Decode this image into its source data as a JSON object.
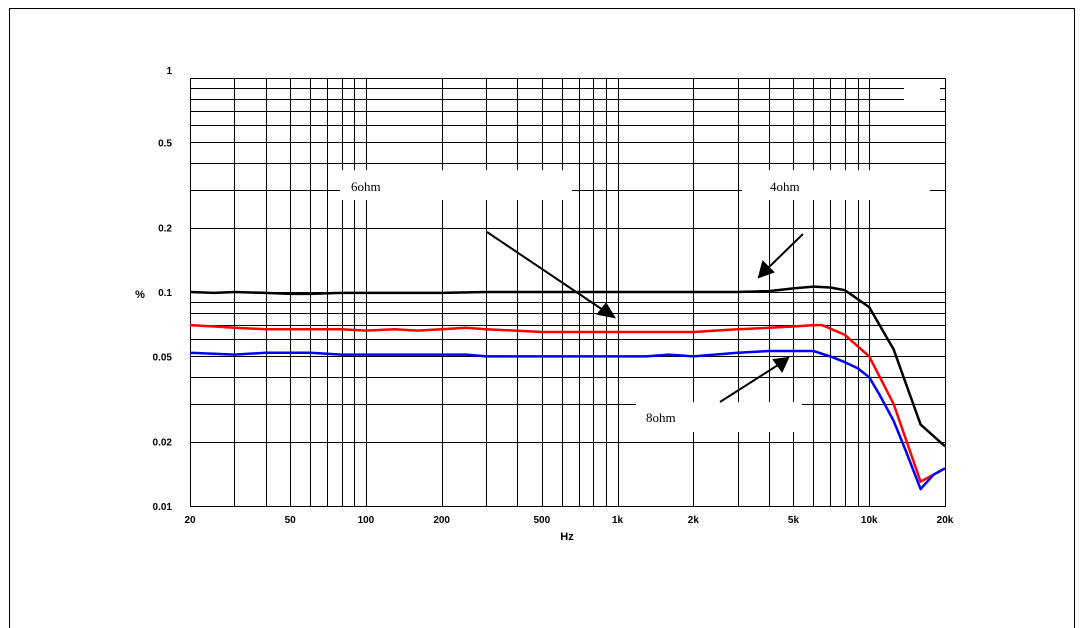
{
  "chart_data": {
    "type": "line",
    "xlabel": "Hz",
    "ylabel": "%",
    "xscale": "log",
    "yscale": "log",
    "xlim": [
      20,
      20000
    ],
    "ylim": [
      0.01,
      1
    ],
    "grid": true,
    "x_tick_labels": [
      {
        "value": 20,
        "label": "20"
      },
      {
        "value": 50,
        "label": "50"
      },
      {
        "value": 100,
        "label": "100"
      },
      {
        "value": 200,
        "label": "200"
      },
      {
        "value": 500,
        "label": "500"
      },
      {
        "value": 1000,
        "label": "1k"
      },
      {
        "value": 2000,
        "label": "2k"
      },
      {
        "value": 5000,
        "label": "5k"
      },
      {
        "value": 10000,
        "label": "10k"
      },
      {
        "value": 20000,
        "label": "20k"
      }
    ],
    "y_tick_labels": [
      {
        "value": 1,
        "label": "1"
      },
      {
        "value": 0.5,
        "label": "0.5"
      },
      {
        "value": 0.2,
        "label": "0.2"
      },
      {
        "value": 0.1,
        "label": "0.1"
      },
      {
        "value": 0.05,
        "label": "0.05"
      },
      {
        "value": 0.02,
        "label": "0.02"
      },
      {
        "value": 0.01,
        "label": "0.01"
      }
    ],
    "series": [
      {
        "name": "4ohm",
        "color": "#000000",
        "points": [
          [
            20,
            0.1
          ],
          [
            25,
            0.099
          ],
          [
            30,
            0.1
          ],
          [
            40,
            0.099
          ],
          [
            50,
            0.098
          ],
          [
            60,
            0.098
          ],
          [
            80,
            0.099
          ],
          [
            100,
            0.099
          ],
          [
            150,
            0.099
          ],
          [
            200,
            0.099
          ],
          [
            300,
            0.1
          ],
          [
            500,
            0.1
          ],
          [
            1000,
            0.1
          ],
          [
            2000,
            0.1
          ],
          [
            3000,
            0.1
          ],
          [
            4000,
            0.101
          ],
          [
            5000,
            0.104
          ],
          [
            6000,
            0.106
          ],
          [
            7000,
            0.105
          ],
          [
            8000,
            0.102
          ],
          [
            10000,
            0.085
          ],
          [
            12500,
            0.054
          ],
          [
            16000,
            0.024
          ],
          [
            20000,
            0.019
          ]
        ]
      },
      {
        "name": "6ohm",
        "color": "#ff0000",
        "points": [
          [
            20,
            0.07
          ],
          [
            25,
            0.069
          ],
          [
            30,
            0.068
          ],
          [
            40,
            0.067
          ],
          [
            60,
            0.067
          ],
          [
            80,
            0.067
          ],
          [
            100,
            0.066
          ],
          [
            130,
            0.067
          ],
          [
            160,
            0.066
          ],
          [
            200,
            0.067
          ],
          [
            250,
            0.068
          ],
          [
            300,
            0.067
          ],
          [
            500,
            0.065
          ],
          [
            700,
            0.065
          ],
          [
            1000,
            0.065
          ],
          [
            2000,
            0.065
          ],
          [
            3000,
            0.067
          ],
          [
            4000,
            0.068
          ],
          [
            5000,
            0.069
          ],
          [
            6000,
            0.07
          ],
          [
            6500,
            0.07
          ],
          [
            8000,
            0.063
          ],
          [
            10000,
            0.05
          ],
          [
            12500,
            0.03
          ],
          [
            16000,
            0.013
          ],
          [
            18000,
            0.014
          ],
          [
            20000,
            0.015
          ]
        ]
      },
      {
        "name": "8ohm",
        "color": "#0000ff",
        "points": [
          [
            20,
            0.052
          ],
          [
            30,
            0.051
          ],
          [
            40,
            0.052
          ],
          [
            60,
            0.052
          ],
          [
            80,
            0.051
          ],
          [
            100,
            0.051
          ],
          [
            150,
            0.051
          ],
          [
            200,
            0.051
          ],
          [
            250,
            0.051
          ],
          [
            300,
            0.05
          ],
          [
            500,
            0.05
          ],
          [
            700,
            0.05
          ],
          [
            1000,
            0.05
          ],
          [
            1300,
            0.05
          ],
          [
            1600,
            0.051
          ],
          [
            2000,
            0.05
          ],
          [
            3000,
            0.052
          ],
          [
            4000,
            0.053
          ],
          [
            5000,
            0.053
          ],
          [
            6000,
            0.053
          ],
          [
            7000,
            0.05
          ],
          [
            8000,
            0.047
          ],
          [
            9000,
            0.044
          ],
          [
            10000,
            0.04
          ],
          [
            11000,
            0.033
          ],
          [
            12500,
            0.025
          ],
          [
            14000,
            0.018
          ],
          [
            16000,
            0.012
          ],
          [
            18000,
            0.014
          ],
          [
            20000,
            0.015
          ]
        ]
      }
    ],
    "annotations": [
      {
        "text": "6ohm",
        "arrow_to": [
          1000,
          0.065
        ]
      },
      {
        "text": "4ohm",
        "arrow_to": [
          3500,
          0.1
        ]
      },
      {
        "text": "8ohm",
        "arrow_to": [
          6000,
          0.053
        ]
      }
    ]
  }
}
